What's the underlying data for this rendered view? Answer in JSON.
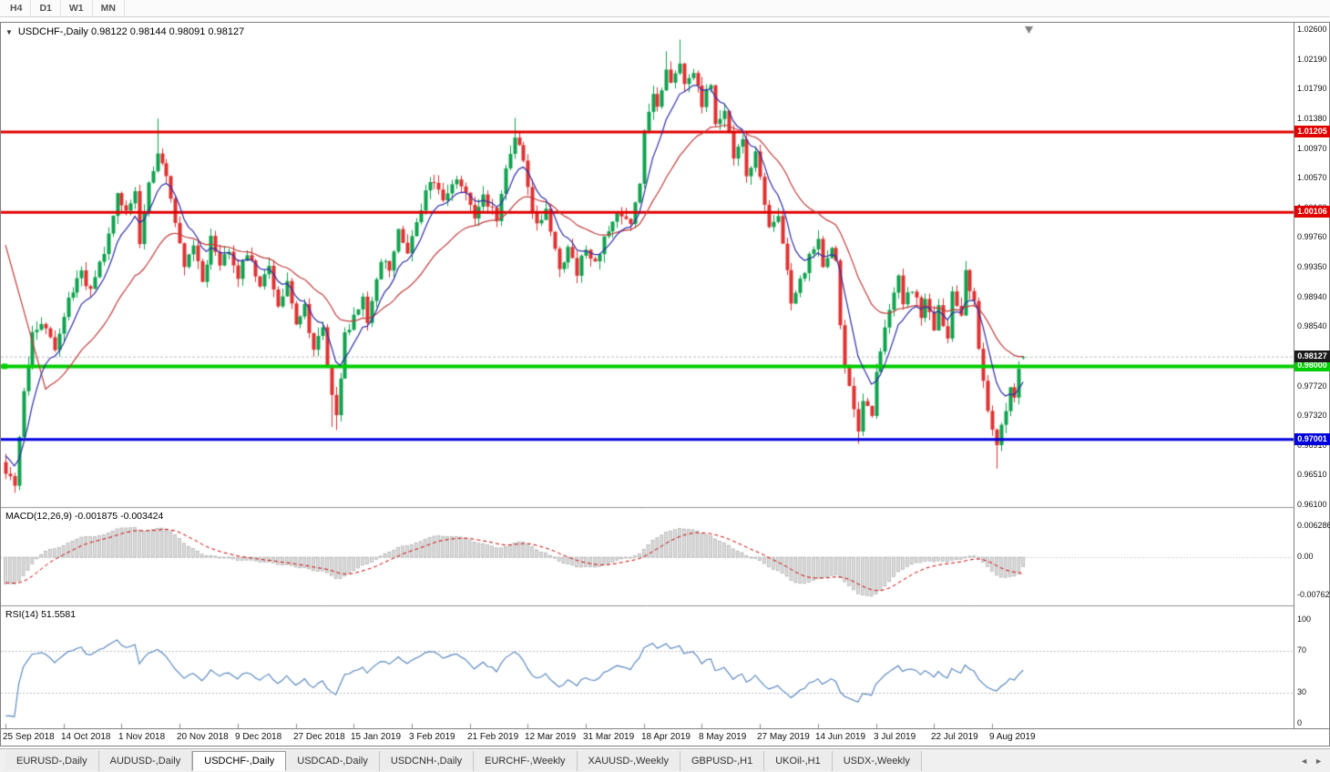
{
  "toolbar": {
    "timeframes": [
      "H4",
      "D1",
      "W1",
      "MN"
    ]
  },
  "icons": {
    "collapse": "▼",
    "tab_scroll_left": "◄",
    "tab_scroll_right": "►"
  },
  "chart": {
    "header_text": "USDCHF-,Daily  0.98122 0.98144 0.98091 0.98127",
    "price_axis": [
      {
        "label": "1.02600",
        "value": 1.026
      },
      {
        "label": "1.02190",
        "value": 1.0219
      },
      {
        "label": "1.01790",
        "value": 1.0179
      },
      {
        "label": "1.01380",
        "value": 1.0138
      },
      {
        "label": "1.00970",
        "value": 1.0097
      },
      {
        "label": "1.00570",
        "value": 1.0057
      },
      {
        "label": "1.00160",
        "value": 1.0016
      },
      {
        "label": "0.99760",
        "value": 0.9976
      },
      {
        "label": "0.99350",
        "value": 0.9935
      },
      {
        "label": "0.98940",
        "value": 0.9894
      },
      {
        "label": "0.98540",
        "value": 0.9854
      },
      {
        "label": "0.97720",
        "value": 0.9772
      },
      {
        "label": "0.97320",
        "value": 0.9732
      },
      {
        "label": "0.96910",
        "value": 0.9691
      },
      {
        "label": "0.96510",
        "value": 0.9651
      },
      {
        "label": "0.96100",
        "value": 0.961
      }
    ],
    "hlines": [
      {
        "label": "1.01205",
        "value": 1.01205,
        "color": "#e10000",
        "width": 3
      },
      {
        "label": "1.00106",
        "value": 1.00106,
        "color": "#e10000",
        "width": 3
      },
      {
        "label": "0.98000",
        "value": 0.98,
        "color": "#00ce00",
        "width": 4,
        "marker": true
      },
      {
        "label": "0.97001",
        "value": 0.97001,
        "color": "#0000dd",
        "width": 3
      }
    ],
    "current_price": {
      "label": "0.98127",
      "value": 0.98127,
      "color": "#1a1a1a"
    },
    "dates": [
      "25 Sep 2018",
      "14 Oct 2018",
      "1 Nov 2018",
      "20 Nov 2018",
      "9 Dec 2018",
      "27 Dec 2018",
      "15 Jan 2019",
      "3 Feb 2019",
      "21 Feb 2019",
      "12 Mar 2019",
      "31 Mar 2019",
      "18 Apr 2019",
      "8 May 2019",
      "27 May 2019",
      "14 Jun 2019",
      "3 Jul 2019",
      "22 Jul 2019",
      "9 Aug 2019"
    ]
  },
  "macd": {
    "label": "MACD(12,26,9) -0.001875 -0.003424",
    "axis": [
      {
        "label": "0.006286",
        "value": 0.006286
      },
      {
        "label": "0.00",
        "value": 0
      },
      {
        "label": "-0.00762",
        "value": -0.00762
      }
    ]
  },
  "rsi": {
    "label": "RSI(14) 51.5581",
    "axis": [
      {
        "label": "100",
        "value": 100
      },
      {
        "label": "70",
        "value": 70
      },
      {
        "label": "30",
        "value": 30
      },
      {
        "label": "0",
        "value": 0
      }
    ]
  },
  "tabs": {
    "active_index": 2,
    "items": [
      "EURUSD-,Daily",
      "AUDUSD-,Daily",
      "USDCHF-,Daily",
      "USDCAD-,Daily",
      "USDCNH-,Daily",
      "EURCHF-,Weekly",
      "XAUUSD-,Weekly",
      "GBPUSD-,H1",
      "UKOil-,H1",
      "USDX-,Weekly"
    ]
  },
  "chart_data": {
    "type": "candlestick",
    "symbol": "USDCHF-",
    "timeframe": "Daily",
    "quote": {
      "open": 0.98122,
      "high": 0.98144,
      "low": 0.98091,
      "close": 0.98127
    },
    "y_axis": {
      "min": 0.961,
      "max": 1.026
    },
    "x_axis": {
      "bar_count": 229,
      "bars_per_label": 13,
      "labels": [
        "25 Sep 2018",
        "14 Oct 2018",
        "1 Nov 2018",
        "20 Nov 2018",
        "9 Dec 2018",
        "27 Dec 2018",
        "15 Jan 2019",
        "3 Feb 2019",
        "21 Feb 2019",
        "12 Mar 2019",
        "31 Mar 2019",
        "18 Apr 2019",
        "8 May 2019",
        "27 May 2019",
        "14 Jun 2019",
        "3 Jul 2019",
        "22 Jul 2019",
        "9 Aug 2019"
      ]
    },
    "levels": [
      1.01205,
      1.00106,
      0.98,
      0.97001
    ],
    "close_path": [
      [
        0,
        0.9658
      ],
      [
        2,
        0.9641
      ],
      [
        4,
        0.9762
      ],
      [
        6,
        0.9842
      ],
      [
        8,
        0.9861
      ],
      [
        11,
        0.9828
      ],
      [
        14,
        0.9896
      ],
      [
        17,
        0.993
      ],
      [
        19,
        0.9902
      ],
      [
        22,
        0.996
      ],
      [
        24,
        1.0012
      ],
      [
        25,
        1.0042
      ],
      [
        27,
        1.0008
      ],
      [
        29,
        1.0038
      ],
      [
        30,
        0.9968
      ],
      [
        32,
        1.0046
      ],
      [
        34,
        1.0096
      ],
      [
        36,
        1.0056
      ],
      [
        38,
        0.9992
      ],
      [
        40,
        0.9936
      ],
      [
        42,
        0.9964
      ],
      [
        44,
        0.9916
      ],
      [
        46,
        0.9975
      ],
      [
        48,
        0.9936
      ],
      [
        50,
        0.996
      ],
      [
        52,
        0.9926
      ],
      [
        54,
        0.9955
      ],
      [
        57,
        0.9906
      ],
      [
        59,
        0.9936
      ],
      [
        61,
        0.9886
      ],
      [
        63,
        0.9916
      ],
      [
        65,
        0.9856
      ],
      [
        67,
        0.988
      ],
      [
        69,
        0.982
      ],
      [
        71,
        0.985
      ],
      [
        73,
        0.9762
      ],
      [
        74,
        0.973
      ],
      [
        76,
        0.9846
      ],
      [
        78,
        0.9866
      ],
      [
        80,
        0.9896
      ],
      [
        81,
        0.986
      ],
      [
        84,
        0.9946
      ],
      [
        86,
        0.993
      ],
      [
        88,
        0.9986
      ],
      [
        90,
        0.9956
      ],
      [
        92,
        0.9996
      ],
      [
        94,
        1.0036
      ],
      [
        96,
        1.0056
      ],
      [
        98,
        1.0026
      ],
      [
        101,
        1.006
      ],
      [
        103,
        1.004
      ],
      [
        105,
        1.0008
      ],
      [
        107,
        1.0036
      ],
      [
        110,
        1.0
      ],
      [
        112,
        1.007
      ],
      [
        114,
        1.011
      ],
      [
        116,
        1.0086
      ],
      [
        117,
        1.004
      ],
      [
        119,
        0.999
      ],
      [
        121,
        1.001
      ],
      [
        124,
        0.9936
      ],
      [
        126,
        0.9958
      ],
      [
        128,
        0.993
      ],
      [
        130,
        0.9962
      ],
      [
        132,
        0.9945
      ],
      [
        135,
        0.999
      ],
      [
        137,
        1.0008
      ],
      [
        140,
        1.0
      ],
      [
        142,
        1.0056
      ],
      [
        143,
        1.0126
      ],
      [
        145,
        1.0176
      ],
      [
        146,
        1.015
      ],
      [
        148,
        1.021
      ],
      [
        149,
        1.019
      ],
      [
        151,
        1.022
      ],
      [
        152,
        1.018
      ],
      [
        154,
        1.0206
      ],
      [
        156,
        1.016
      ],
      [
        158,
        1.0186
      ],
      [
        159,
        1.013
      ],
      [
        161,
        1.0148
      ],
      [
        163,
        1.009
      ],
      [
        165,
        1.0108
      ],
      [
        166,
        1.006
      ],
      [
        168,
        1.0088
      ],
      [
        170,
        1.002
      ],
      [
        171,
        0.9988
      ],
      [
        173,
        1.0
      ],
      [
        175,
        0.993
      ],
      [
        176,
        0.989
      ],
      [
        178,
        0.9918
      ],
      [
        180,
        0.995
      ],
      [
        182,
        0.9968
      ],
      [
        183,
        0.993
      ],
      [
        185,
        0.9958
      ],
      [
        186,
        0.994
      ],
      [
        187,
        0.986
      ],
      [
        188,
        0.98
      ],
      [
        190,
        0.9742
      ],
      [
        191,
        0.9706
      ],
      [
        192,
        0.9758
      ],
      [
        194,
        0.9732
      ],
      [
        195,
        0.9788
      ],
      [
        197,
        0.9848
      ],
      [
        199,
        0.99
      ],
      [
        200,
        0.9928
      ],
      [
        201,
        0.9882
      ],
      [
        203,
        0.9908
      ],
      [
        205,
        0.987
      ],
      [
        206,
        0.9898
      ],
      [
        208,
        0.9852
      ],
      [
        209,
        0.9878
      ],
      [
        211,
        0.9842
      ],
      [
        212,
        0.9902
      ],
      [
        214,
        0.9872
      ],
      [
        215,
        0.9928
      ],
      [
        217,
        0.9888
      ],
      [
        218,
        0.9822
      ],
      [
        220,
        0.9742
      ],
      [
        221,
        0.9718
      ],
      [
        222,
        0.9692
      ],
      [
        224,
        0.9738
      ],
      [
        225,
        0.9772
      ],
      [
        226,
        0.976
      ],
      [
        227,
        0.98
      ],
      [
        228,
        0.98127
      ]
    ],
    "wick_events": [
      {
        "i": 2,
        "low": 0.9627
      },
      {
        "i": 34,
        "high": 1.0139
      },
      {
        "i": 73,
        "low": 0.9717
      },
      {
        "i": 74,
        "low": 0.9713
      },
      {
        "i": 114,
        "high": 1.014
      },
      {
        "i": 148,
        "high": 1.0231
      },
      {
        "i": 151,
        "high": 1.0247
      },
      {
        "i": 182,
        "high": 0.9986
      },
      {
        "i": 191,
        "low": 0.9694
      },
      {
        "i": 215,
        "high": 0.9944
      },
      {
        "i": 222,
        "low": 0.966
      }
    ],
    "moving_averages": [
      {
        "period": 8,
        "color": "#2d2da8"
      },
      {
        "period": 26,
        "color": "#c23b3b"
      }
    ],
    "macd": {
      "fast": 12,
      "slow": 26,
      "signal": 9,
      "value": -0.001875,
      "signal_value": -0.003424
    },
    "rsi": {
      "period": 14,
      "value": 51.5581,
      "levels": [
        70,
        30
      ]
    },
    "colors": {
      "up": "#0fa24e",
      "down": "#e03131",
      "ma_fast": "#2d2da8",
      "ma_slow": "#c23b3b",
      "macd_signal": "#cc0000",
      "rsi": "#4f81bd"
    }
  }
}
